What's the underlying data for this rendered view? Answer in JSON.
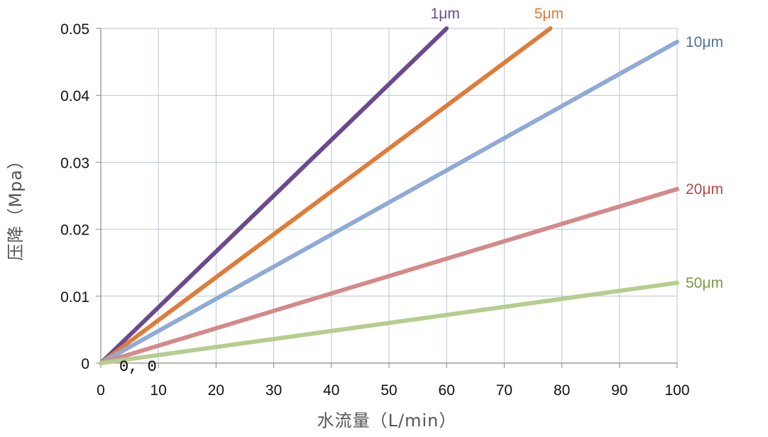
{
  "chart_data": {
    "type": "line",
    "title": "",
    "xlabel": "水流量（L/min）",
    "ylabel": "压降（Mpa）",
    "xlim": [
      0,
      100
    ],
    "ylim": [
      0,
      0.05
    ],
    "x_ticks": [
      0,
      10,
      20,
      30,
      40,
      50,
      60,
      70,
      80,
      90,
      100
    ],
    "x_tick_labels": [
      "0",
      "10",
      "20",
      "30",
      "40",
      "50",
      "60",
      "70",
      "80",
      "90",
      "100"
    ],
    "y_ticks": [
      0,
      0.01,
      0.02,
      0.03,
      0.04,
      0.05
    ],
    "y_tick_labels": [
      "0",
      "0.01",
      "0.02",
      "0.03",
      "0.04",
      "0.05"
    ],
    "grid": true,
    "origin_annotation": "0, 0",
    "series": [
      {
        "name": "1μm",
        "color": "#6a4a8e",
        "x": [
          0,
          60
        ],
        "y": [
          0,
          0.05
        ]
      },
      {
        "name": "5μm",
        "color": "#e07b39",
        "x": [
          0,
          78
        ],
        "y": [
          0,
          0.05
        ]
      },
      {
        "name": "10μm",
        "color": "#8faad6",
        "label_color": "#4f6fa0",
        "x": [
          0,
          100
        ],
        "y": [
          0,
          0.048
        ]
      },
      {
        "name": "20μm",
        "color": "#d48a8a",
        "label_color": "#b04a4a",
        "x": [
          0,
          100
        ],
        "y": [
          0,
          0.026
        ]
      },
      {
        "name": "50μm",
        "color": "#b5ce8e",
        "label_color": "#7a9a44",
        "x": [
          0,
          100
        ],
        "y": [
          0,
          0.012
        ]
      }
    ]
  }
}
